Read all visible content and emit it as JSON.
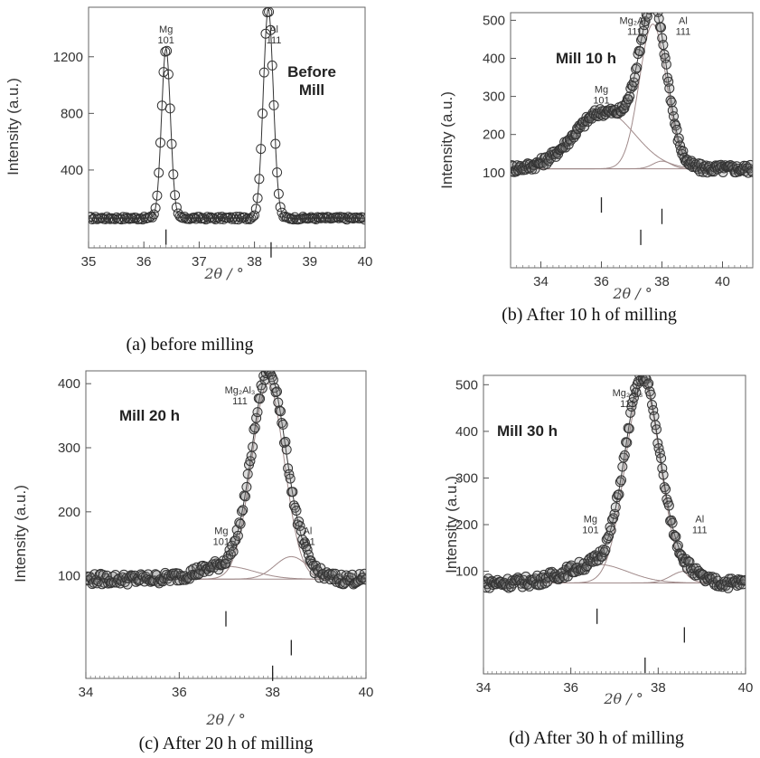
{
  "chart_data": [
    {
      "id": "a",
      "type": "scatter",
      "caption": "(a) before milling",
      "annotation": [
        "Before",
        "Mill"
      ],
      "xlabel": "2θ / °",
      "ylabel": "Intensity (a.u.)",
      "xlim": [
        35,
        40
      ],
      "ylim": [
        -150,
        1550
      ],
      "xticks": [
        35,
        36,
        37,
        38,
        39,
        40
      ],
      "yticks": [
        400,
        800,
        1200
      ],
      "xticklabels": [
        "35",
        "36",
        "37",
        "38",
        "39",
        "40"
      ],
      "yticklabels": [
        "400",
        "800",
        "1200"
      ],
      "baseline": 60,
      "peaks": [
        {
          "label": [
            "Mg",
            "101"
          ],
          "center": 36.4,
          "height": 1200,
          "width": 0.08,
          "label_x": 36.4,
          "label_y": 1370
        },
        {
          "label": [
            "Al",
            "111"
          ],
          "center": 38.25,
          "height": 1480,
          "width": 0.09,
          "label_x": 38.35,
          "label_y": 1370
        }
      ],
      "reference_marks": [
        {
          "x": 36.4,
          "y": -20
        },
        {
          "x": 38.3,
          "y": -110
        }
      ]
    },
    {
      "id": "b",
      "type": "scatter",
      "caption": "(b) After 10 h of milling",
      "annotation": [
        "Mill 10 h"
      ],
      "xlabel": "2θ / °",
      "ylabel": "Intensity (a.u.)",
      "xlim": [
        33,
        41
      ],
      "ylim": [
        -150,
        520
      ],
      "xticks": [
        34,
        36,
        38,
        40
      ],
      "yticks": [
        100,
        200,
        300,
        400,
        500
      ],
      "xticklabels": [
        "34",
        "36",
        "38",
        "40"
      ],
      "yticklabels": [
        "100",
        "200",
        "300",
        "400",
        "500"
      ],
      "baseline": 110,
      "peaks": [
        {
          "label": [
            "Mg",
            "101"
          ],
          "center": 36.1,
          "height": 150,
          "width": 1.0,
          "label_x": 36.0,
          "label_y": 310
        },
        {
          "label": [
            "Mg₂Al₃",
            "111"
          ],
          "center": 37.7,
          "height": 380,
          "width": 0.45,
          "label_x": 37.1,
          "label_y": 490
        },
        {
          "label": [
            "Al",
            "111"
          ],
          "center": 38.0,
          "height": 20,
          "width": 0.3,
          "label_x": 38.7,
          "label_y": 490
        }
      ],
      "reference_marks": [
        {
          "x": 36.0,
          "y": 35
        },
        {
          "x": 37.3,
          "y": -50
        },
        {
          "x": 38.0,
          "y": 5
        }
      ]
    },
    {
      "id": "c",
      "type": "scatter",
      "caption": "(c) After 20 h of milling",
      "annotation": [
        "Mill 20 h"
      ],
      "xlabel": "2θ / °",
      "ylabel": "Intensity (a.u.)",
      "xlim": [
        34,
        40
      ],
      "ylim": [
        -60,
        420
      ],
      "xticks": [
        34,
        36,
        38,
        40
      ],
      "yticks": [
        100,
        200,
        300,
        400
      ],
      "xticklabels": [
        "34",
        "36",
        "38",
        "40"
      ],
      "yticklabels": [
        "100",
        "200",
        "300",
        "400"
      ],
      "baseline": 95,
      "peaks": [
        {
          "label": [
            "Mg",
            "101"
          ],
          "center": 37.0,
          "height": 20,
          "width": 0.6,
          "label_x": 36.9,
          "label_y": 165
        },
        {
          "label": [
            "Mg₂Al₃",
            "111"
          ],
          "center": 37.9,
          "height": 305,
          "width": 0.35,
          "label_x": 37.3,
          "label_y": 385
        },
        {
          "label": [
            "Al",
            "111"
          ],
          "center": 38.4,
          "height": 35,
          "width": 0.35,
          "label_x": 38.75,
          "label_y": 165
        }
      ],
      "reference_marks": [
        {
          "x": 37.0,
          "y": 45
        },
        {
          "x": 38.4,
          "y": 0
        },
        {
          "x": 38.0,
          "y": -40
        }
      ]
    },
    {
      "id": "d",
      "type": "scatter",
      "caption": "(d) After 30 h of milling",
      "annotation": [
        "Mill 30 h"
      ],
      "xlabel": "2θ / °",
      "ylabel": "Intensity (a.u.)",
      "xlim": [
        34,
        40
      ],
      "ylim": [
        -120,
        520
      ],
      "xticks": [
        34,
        36,
        38,
        40
      ],
      "yticks": [
        100,
        200,
        300,
        400,
        500
      ],
      "xticklabels": [
        "34",
        "36",
        "38",
        "40"
      ],
      "yticklabels": [
        "100",
        "200",
        "300",
        "400",
        "500"
      ],
      "baseline": 75,
      "peaks": [
        {
          "label": [
            "Mg",
            "101"
          ],
          "center": 36.6,
          "height": 40,
          "width": 0.7,
          "label_x": 36.45,
          "label_y": 205
        },
        {
          "label": [
            "Mg₂Al₃",
            "111"
          ],
          "center": 37.65,
          "height": 430,
          "width": 0.4,
          "label_x": 37.3,
          "label_y": 475
        },
        {
          "label": [
            "Al",
            "111"
          ],
          "center": 38.6,
          "height": 25,
          "width": 0.3,
          "label_x": 38.95,
          "label_y": 205
        }
      ],
      "reference_marks": [
        {
          "x": 36.6,
          "y": 20
        },
        {
          "x": 38.6,
          "y": -20
        },
        {
          "x": 37.7,
          "y": -85
        }
      ]
    }
  ]
}
